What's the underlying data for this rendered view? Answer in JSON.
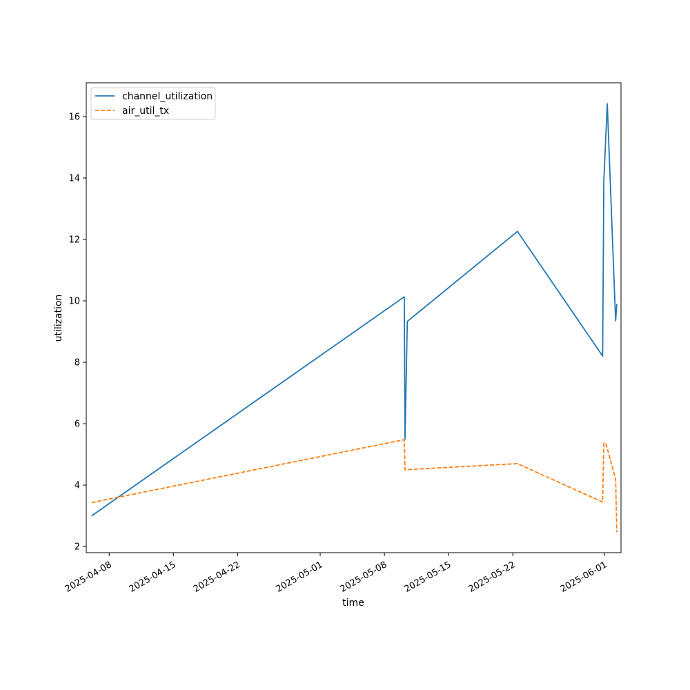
{
  "chart_data": {
    "type": "line",
    "title": "",
    "xlabel": "time",
    "ylabel": "utilization",
    "x_ticks": [
      "2025-04-08",
      "2025-04-15",
      "2025-04-22",
      "2025-05-01",
      "2025-05-08",
      "2025-05-15",
      "2025-05-22",
      "2025-06-01"
    ],
    "y_ticks": [
      2,
      4,
      6,
      8,
      10,
      12,
      14,
      16
    ],
    "xlim": [
      "2025-04-05T12:00",
      "2025-06-02T19:00"
    ],
    "ylim": [
      1.8,
      17.1
    ],
    "grid": false,
    "legend_position": "upper-left",
    "series": [
      {
        "name": "channel_utilization",
        "color": "#1f77b4",
        "dash": "solid",
        "points": [
          [
            "2025-04-06T02:00",
            3.0
          ],
          [
            "2025-05-10T04:00",
            10.13
          ],
          [
            "2025-05-10T06:00",
            5.5
          ],
          [
            "2025-05-10T12:00",
            9.33
          ],
          [
            "2025-05-22T12:00",
            12.26
          ],
          [
            "2025-05-31T19:00",
            8.2
          ],
          [
            "2025-05-31T22:00",
            13.9
          ],
          [
            "2025-06-01T07:00",
            16.42
          ],
          [
            "2025-06-02T05:00",
            9.35
          ],
          [
            "2025-06-02T08:00",
            9.9
          ]
        ]
      },
      {
        "name": "air_util_tx",
        "color": "#ff7f0e",
        "dash": "dashed",
        "points": [
          [
            "2025-04-06T02:00",
            3.43
          ],
          [
            "2025-05-10T04:00",
            5.48
          ],
          [
            "2025-05-10T06:00",
            4.5
          ],
          [
            "2025-05-22T12:00",
            4.7
          ],
          [
            "2025-05-31T19:00",
            3.45
          ],
          [
            "2025-05-31T22:00",
            5.37
          ],
          [
            "2025-06-01T04:00",
            5.33
          ],
          [
            "2025-06-02T05:00",
            4.2
          ],
          [
            "2025-06-02T08:00",
            2.47
          ]
        ]
      }
    ]
  }
}
